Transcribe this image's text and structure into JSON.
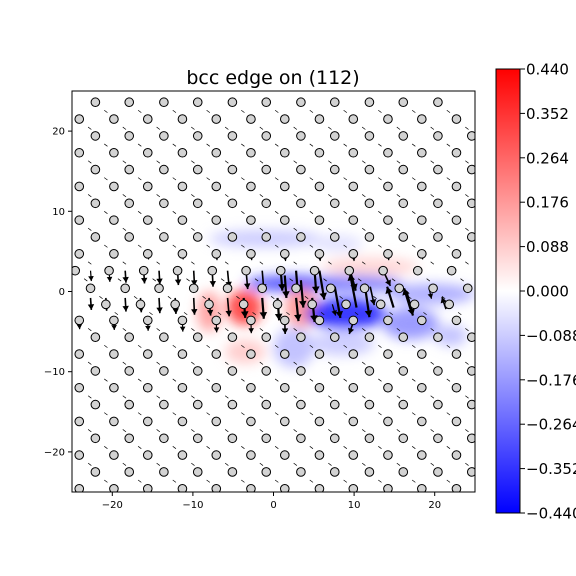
{
  "chart_data": {
    "type": "scatter",
    "title": "bcc edge on (112)",
    "xlabel": "",
    "ylabel": "",
    "xlim": [
      -25,
      25
    ],
    "ylim": [
      -25,
      25
    ],
    "x_ticks": [
      -20,
      -10,
      0,
      10,
      20
    ],
    "y_ticks": [
      -20,
      -10,
      0,
      10,
      20
    ],
    "x_tick_labels": [
      "−20",
      "−10",
      "0",
      "10",
      "20"
    ],
    "y_tick_labels": [
      "−20",
      "−10",
      "0",
      "10",
      "20"
    ],
    "grid": false,
    "lattice": {
      "rows": [
        {
          "y": 23.6,
          "x": [
            -22.1,
            -17.9,
            -13.6,
            -9.4,
            -5.1,
            -0.9,
            3.4,
            7.6,
            11.9,
            16.1,
            20.4
          ]
        },
        {
          "y": 21.5,
          "x": [
            -24.1,
            -19.8,
            -15.6,
            -11.3,
            -7.1,
            -2.8,
            1.4,
            5.7,
            9.9,
            14.2,
            18.4,
            22.7
          ]
        },
        {
          "y": 19.4,
          "x": [
            -22.1,
            -17.9,
            -13.6,
            -9.4,
            -5.1,
            -0.9,
            3.4,
            7.6,
            11.9,
            16.1,
            20.4,
            24.6
          ]
        },
        {
          "y": 17.3,
          "x": [
            -24.1,
            -19.8,
            -15.6,
            -11.3,
            -7.1,
            -2.8,
            1.4,
            5.7,
            9.9,
            14.2,
            18.4,
            22.7
          ]
        },
        {
          "y": 15.2,
          "x": [
            -22.1,
            -17.9,
            -13.6,
            -9.4,
            -5.1,
            -0.9,
            3.4,
            7.6,
            11.9,
            16.1,
            20.4,
            24.6
          ]
        },
        {
          "y": 13.1,
          "x": [
            -24.1,
            -19.8,
            -15.6,
            -11.3,
            -7.1,
            -2.8,
            1.4,
            5.7,
            9.9,
            14.2,
            18.4,
            22.7
          ]
        },
        {
          "y": 11.0,
          "x": [
            -22.1,
            -17.9,
            -13.6,
            -9.4,
            -5.1,
            -0.9,
            3.4,
            7.6,
            11.9,
            16.1,
            20.4,
            24.6
          ]
        },
        {
          "y": 8.9,
          "x": [
            -24.1,
            -19.8,
            -15.6,
            -11.3,
            -7.1,
            -2.8,
            1.4,
            5.7,
            9.9,
            14.2,
            18.4,
            22.7
          ]
        },
        {
          "y": 6.8,
          "x": [
            -22.1,
            -17.9,
            -13.6,
            -9.4,
            -5.1,
            -0.9,
            3.4,
            7.6,
            11.9,
            16.1,
            20.4,
            24.6
          ]
        },
        {
          "y": 4.7,
          "x": [
            -24.1,
            -19.8,
            -15.6,
            -11.3,
            -7.1,
            -2.8,
            1.4,
            5.7,
            9.9,
            14.2,
            18.4,
            22.7
          ]
        },
        {
          "y": 2.6,
          "x": [
            -24.6,
            -20.4,
            -16.1,
            -11.9,
            -7.6,
            -3.4,
            0.9,
            5.1,
            9.4,
            13.6,
            17.9,
            22.1
          ]
        },
        {
          "y": 0.4,
          "x": [
            -22.7,
            -18.4,
            -14.2,
            -9.9,
            -5.7,
            -1.4,
            2.8,
            7.1,
            11.3,
            15.6,
            19.8,
            24.1
          ]
        },
        {
          "y": -1.6,
          "x": [
            -20.8,
            -16.5,
            -12.2,
            -8.0,
            -3.7,
            0.5,
            4.8,
            9.0,
            13.3,
            17.5,
            21.8
          ]
        },
        {
          "y": -3.6,
          "x": [
            -24.1,
            -19.8,
            -15.6,
            -11.3,
            -7.1,
            -2.8,
            1.4,
            5.7,
            9.9,
            14.2,
            18.4,
            22.7
          ]
        },
        {
          "y": -5.7,
          "x": [
            -22.1,
            -17.9,
            -13.6,
            -9.4,
            -5.1,
            -0.9,
            3.4,
            7.6,
            11.9,
            16.1,
            20.4,
            24.6
          ]
        },
        {
          "y": -7.8,
          "x": [
            -24.1,
            -19.8,
            -15.6,
            -11.3,
            -7.1,
            -2.8,
            1.4,
            5.7,
            9.9,
            14.2,
            18.4,
            22.7
          ]
        },
        {
          "y": -9.9,
          "x": [
            -22.1,
            -17.9,
            -13.6,
            -9.4,
            -5.1,
            -0.9,
            3.4,
            7.6,
            11.9,
            16.1,
            20.4,
            24.6
          ]
        },
        {
          "y": -12.0,
          "x": [
            -24.1,
            -19.8,
            -15.6,
            -11.3,
            -7.1,
            -2.8,
            1.4,
            5.7,
            9.9,
            14.2,
            18.4,
            22.7
          ]
        },
        {
          "y": -14.1,
          "x": [
            -22.1,
            -17.9,
            -13.6,
            -9.4,
            -5.1,
            -0.9,
            3.4,
            7.6,
            11.9,
            16.1,
            20.4,
            24.6
          ]
        },
        {
          "y": -16.2,
          "x": [
            -24.1,
            -19.8,
            -15.6,
            -11.3,
            -7.1,
            -2.8,
            1.4,
            5.7,
            9.9,
            14.2,
            18.4,
            22.7
          ]
        },
        {
          "y": -18.3,
          "x": [
            -22.1,
            -17.9,
            -13.6,
            -9.4,
            -5.1,
            -0.9,
            3.4,
            7.6,
            11.9,
            16.1,
            20.4,
            24.6
          ]
        },
        {
          "y": -20.4,
          "x": [
            -24.1,
            -19.8,
            -15.6,
            -11.3,
            -7.1,
            -2.8,
            1.4,
            5.7,
            9.9,
            14.2,
            18.4,
            22.7
          ]
        },
        {
          "y": -22.5,
          "x": [
            -22.1,
            -17.9,
            -13.6,
            -9.4,
            -5.1,
            -0.9,
            3.4,
            7.6,
            11.9,
            16.1,
            20.4,
            24.6
          ]
        },
        {
          "y": -24.6,
          "x": [
            -24.1,
            -19.8,
            -15.6,
            -11.3,
            -7.1,
            -2.8,
            1.4,
            5.7,
            9.9,
            14.2,
            18.4,
            22.7
          ]
        }
      ]
    },
    "displacement_arrows": [
      {
        "x": -22.7,
        "y": 2.6,
        "dx": 0.1,
        "dy": -1.3
      },
      {
        "x": -20.4,
        "y": 2.6,
        "dx": 0.1,
        "dy": -1.4
      },
      {
        "x": -18.4,
        "y": 2.6,
        "dx": 0.1,
        "dy": -1.5
      },
      {
        "x": -16.1,
        "y": 2.6,
        "dx": 0.1,
        "dy": -1.6
      },
      {
        "x": -14.2,
        "y": 2.6,
        "dx": 0.1,
        "dy": -1.7
      },
      {
        "x": -11.9,
        "y": 2.6,
        "dx": 0.1,
        "dy": -1.8
      },
      {
        "x": -9.9,
        "y": 2.6,
        "dx": 0.1,
        "dy": -1.9
      },
      {
        "x": -7.6,
        "y": 2.6,
        "dx": 0.1,
        "dy": -2.0
      },
      {
        "x": -5.7,
        "y": 2.6,
        "dx": 0.2,
        "dy": -2.1
      },
      {
        "x": -3.4,
        "y": 2.6,
        "dx": 0.2,
        "dy": -2.3
      },
      {
        "x": -1.4,
        "y": 2.6,
        "dx": 0.2,
        "dy": -2.4
      },
      {
        "x": 0.9,
        "y": 2.6,
        "dx": 0.2,
        "dy": -2.5
      },
      {
        "x": 2.8,
        "y": 2.6,
        "dx": 0.2,
        "dy": -2.6
      },
      {
        "x": 5.1,
        "y": 2.6,
        "dx": 0.2,
        "dy": -2.8
      },
      {
        "x": -22.7,
        "y": -0.8,
        "dx": 0.1,
        "dy": -1.5
      },
      {
        "x": -20.8,
        "y": -0.8,
        "dx": 0.1,
        "dy": -1.6
      },
      {
        "x": -18.4,
        "y": -0.8,
        "dx": 0.1,
        "dy": -1.7
      },
      {
        "x": -16.5,
        "y": -0.8,
        "dx": 0.1,
        "dy": -1.8
      },
      {
        "x": -14.2,
        "y": -0.8,
        "dx": 0.1,
        "dy": -1.9
      },
      {
        "x": -12.2,
        "y": -0.8,
        "dx": 0.1,
        "dy": -2.0
      },
      {
        "x": -9.9,
        "y": -0.8,
        "dx": 0.1,
        "dy": -2.1
      },
      {
        "x": -8.0,
        "y": -0.8,
        "dx": 0.2,
        "dy": -2.2
      },
      {
        "x": -5.7,
        "y": -0.8,
        "dx": 0.2,
        "dy": -2.3
      },
      {
        "x": -3.7,
        "y": -0.8,
        "dx": 0.2,
        "dy": -2.5
      },
      {
        "x": -1.4,
        "y": -0.8,
        "dx": 0.2,
        "dy": -2.6
      },
      {
        "x": 0.5,
        "y": -0.8,
        "dx": 0.2,
        "dy": -2.8
      },
      {
        "x": 2.8,
        "y": -0.8,
        "dx": 0.3,
        "dy": -2.9
      },
      {
        "x": 4.8,
        "y": -0.8,
        "dx": 0.3,
        "dy": -3.0
      },
      {
        "x": -24.1,
        "y": -3.8,
        "dx": 0.05,
        "dy": -0.9
      },
      {
        "x": -19.8,
        "y": -3.8,
        "dx": 0.05,
        "dy": -1.0
      },
      {
        "x": -15.6,
        "y": -3.8,
        "dx": 0.05,
        "dy": -1.1
      },
      {
        "x": -11.3,
        "y": -3.8,
        "dx": 0.05,
        "dy": -1.2
      },
      {
        "x": -7.1,
        "y": -3.8,
        "dx": 0.05,
        "dy": -1.3
      },
      {
        "x": -2.8,
        "y": -3.8,
        "dx": 0.05,
        "dy": -1.4
      },
      {
        "x": 1.4,
        "y": -3.8,
        "dx": 0.05,
        "dy": -1.5
      },
      {
        "x": 1.4,
        "y": 2.0,
        "dx": 0.2,
        "dy": -2.8
      },
      {
        "x": 3.4,
        "y": 1.4,
        "dx": 0.3,
        "dy": -3.4
      },
      {
        "x": 5.7,
        "y": 2.6,
        "dx": 0.6,
        "dy": -3.6
      },
      {
        "x": 7.6,
        "y": 0.6,
        "dx": 0.7,
        "dy": -3.9
      },
      {
        "x": 9.4,
        "y": 2.9,
        "dx": 0.8,
        "dy": -2.8
      },
      {
        "x": 11.3,
        "y": 1.0,
        "dx": 0.6,
        "dy": -4.2
      },
      {
        "x": 13.6,
        "y": 2.6,
        "dx": 0.9,
        "dy": -1.9
      },
      {
        "x": 10.3,
        "y": -2.0,
        "dx": -0.8,
        "dy": 4.2
      },
      {
        "x": 14.9,
        "y": -2.0,
        "dx": -0.8,
        "dy": 2.6
      },
      {
        "x": 17.0,
        "y": -2.2,
        "dx": -0.8,
        "dy": 2.6
      },
      {
        "x": 21.4,
        "y": -2.2,
        "dx": -0.5,
        "dy": 1.5
      },
      {
        "x": 9.9,
        "y": -3.8,
        "dx": -0.5,
        "dy": -1.5
      },
      {
        "x": 12.0,
        "y": 0.6,
        "dx": 0.5,
        "dy": -2.3
      },
      {
        "x": 7.3,
        "y": -1.6,
        "dx": 0.4,
        "dy": -1.4
      },
      {
        "x": 16.5,
        "y": 0.0,
        "dx": 0.8,
        "dy": -3.0
      },
      {
        "x": 19.3,
        "y": 0.4,
        "dx": 0.3,
        "dy": -1.3
      },
      {
        "x": -24.1,
        "y": 4.7,
        "dx": 0.1,
        "dy": -0.6
      },
      {
        "x": -19.8,
        "y": 4.7,
        "dx": 0.1,
        "dy": -0.6
      },
      {
        "x": -15.6,
        "y": 4.7,
        "dx": 0.1,
        "dy": -0.7
      },
      {
        "x": -11.3,
        "y": 4.7,
        "dx": 0.1,
        "dy": -0.7
      },
      {
        "x": -7.1,
        "y": 4.7,
        "dx": 0.1,
        "dy": -0.8
      },
      {
        "x": -2.8,
        "y": 4.7,
        "dx": 0.1,
        "dy": -0.8
      },
      {
        "x": 1.4,
        "y": 4.7,
        "dx": 0.1,
        "dy": -0.9
      },
      {
        "x": 5.7,
        "y": 4.7,
        "dx": 0.1,
        "dy": -0.9
      },
      {
        "x": 9.9,
        "y": 4.7,
        "dx": 0.1,
        "dy": -0.9
      },
      {
        "x": 14.2,
        "y": 4.7,
        "dx": 0.1,
        "dy": -0.8
      },
      {
        "x": 18.4,
        "y": 4.7,
        "dx": 0.1,
        "dy": -0.7
      }
    ],
    "field_blobs": [
      {
        "x": -1.0,
        "y": 6.6,
        "rx": 7.0,
        "ry": 1.1,
        "value": -0.1
      },
      {
        "x": 8.0,
        "y": 6.0,
        "rx": 3.0,
        "ry": 1.0,
        "value": -0.06
      },
      {
        "x": 12.0,
        "y": 3.1,
        "rx": 6.0,
        "ry": 1.2,
        "value": 0.08
      },
      {
        "x": 2.5,
        "y": 1.0,
        "rx": 6.0,
        "ry": 1.0,
        "value": -0.34
      },
      {
        "x": 10.0,
        "y": 1.0,
        "rx": 6.0,
        "ry": 1.0,
        "value": -0.25
      },
      {
        "x": 19.5,
        "y": -0.3,
        "rx": 5.5,
        "ry": 1.3,
        "value": -0.16
      },
      {
        "x": -3.6,
        "y": -2.0,
        "rx": 2.2,
        "ry": 2.2,
        "value": 0.36
      },
      {
        "x": -8.0,
        "y": -2.5,
        "rx": 1.5,
        "ry": 2.5,
        "value": 0.18
      },
      {
        "x": 3.5,
        "y": -2.0,
        "rx": 2.0,
        "ry": 2.5,
        "value": 0.2
      },
      {
        "x": 9.0,
        "y": -2.8,
        "rx": 5.0,
        "ry": 2.0,
        "value": -0.4
      },
      {
        "x": 17.0,
        "y": -4.0,
        "rx": 3.5,
        "ry": 2.0,
        "value": -0.2
      },
      {
        "x": 22.0,
        "y": -5.5,
        "rx": 2.0,
        "ry": 1.3,
        "value": -0.12
      },
      {
        "x": 8.5,
        "y": -6.5,
        "rx": 4.0,
        "ry": 1.5,
        "value": -0.1
      },
      {
        "x": 2.5,
        "y": -7.0,
        "rx": 2.5,
        "ry": 2.5,
        "value": -0.12
      },
      {
        "x": -3.5,
        "y": -7.5,
        "rx": 2.5,
        "ry": 1.5,
        "value": 0.1
      }
    ]
  },
  "colorbar": {
    "vmin": -0.44,
    "vmax": 0.44,
    "ticks": [
      0.44,
      0.352,
      0.264,
      0.176,
      0.088,
      0.0,
      -0.088,
      -0.176,
      -0.264,
      -0.352,
      -0.44
    ],
    "tick_labels": [
      "0.440",
      "0.352",
      "0.264",
      "0.176",
      "0.088",
      "0.000",
      "−0.088",
      "−0.176",
      "−0.264",
      "−0.352",
      "−0.440"
    ],
    "colormap": "bwr",
    "color_high": "#ff0000",
    "color_mid": "#ffffff",
    "color_low": "#0000ff"
  },
  "colors": {
    "atom_fill": "#d3d3d3",
    "atom_edge": "#000000",
    "arrow": "#000000"
  }
}
